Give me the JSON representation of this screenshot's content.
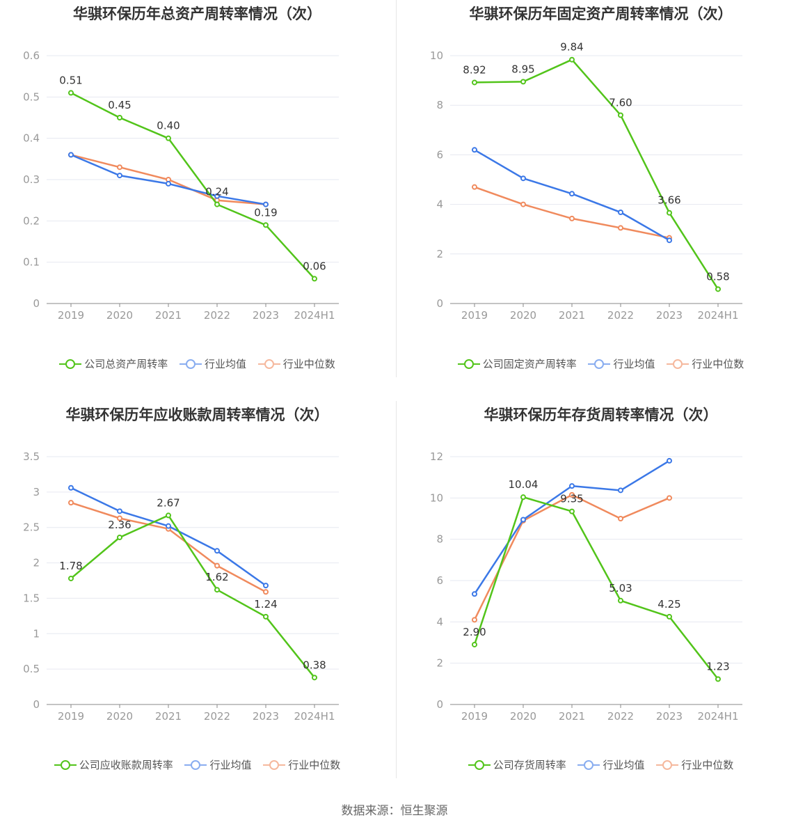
{
  "source": "数据来源：恒生聚源",
  "colors": {
    "company": "#52c41a",
    "avg": "#3b78e7",
    "median": "#f08a5d",
    "grid": "#e6e8f0",
    "axis": "#999999"
  },
  "chart_data": [
    {
      "type": "line",
      "title": "华骐环保历年总资产周转率情况（次）",
      "categories": [
        "2019",
        "2020",
        "2021",
        "2022",
        "2023",
        "2024H1"
      ],
      "ylim": [
        0,
        0.6
      ],
      "yticks": [
        "0",
        "0.1",
        "0.2",
        "0.3",
        "0.4",
        "0.5",
        "0.6"
      ],
      "grid": true,
      "legend_position": "bottom",
      "series": [
        {
          "name": "公司总资产周转率",
          "values": [
            0.51,
            0.45,
            0.4,
            0.24,
            0.19,
            0.06
          ],
          "labels": [
            "0.51",
            "0.45",
            "0.40",
            "0.24",
            "0.19",
            "0.06"
          ]
        },
        {
          "name": "行业均值",
          "values": [
            0.36,
            0.31,
            0.29,
            0.26,
            0.24,
            null
          ]
        },
        {
          "name": "行业中位数",
          "values": [
            0.36,
            0.33,
            0.3,
            0.25,
            0.24,
            null
          ]
        }
      ]
    },
    {
      "type": "line",
      "title": "华骐环保历年固定资产周转率情况（次）",
      "categories": [
        "2019",
        "2020",
        "2021",
        "2022",
        "2023",
        "2024H1"
      ],
      "ylim": [
        0,
        10
      ],
      "yticks": [
        "0",
        "2",
        "4",
        "6",
        "8",
        "10"
      ],
      "grid": true,
      "legend_position": "bottom",
      "series": [
        {
          "name": "公司固定资产周转率",
          "values": [
            8.92,
            8.95,
            9.84,
            7.6,
            3.66,
            0.58
          ],
          "labels": [
            "8.92",
            "8.95",
            "9.84",
            "7.60",
            "3.66",
            "0.58"
          ]
        },
        {
          "name": "行业均值",
          "values": [
            6.2,
            5.05,
            4.43,
            3.68,
            2.55,
            null
          ]
        },
        {
          "name": "行业中位数",
          "values": [
            4.7,
            4.0,
            3.43,
            3.05,
            2.65,
            null
          ]
        }
      ]
    },
    {
      "type": "line",
      "title": "华骐环保历年应收账款周转率情况（次）",
      "categories": [
        "2019",
        "2020",
        "2021",
        "2022",
        "2023",
        "2024H1"
      ],
      "ylim": [
        0,
        3.5
      ],
      "yticks": [
        "0",
        "0.5",
        "1",
        "1.5",
        "2",
        "2.5",
        "3",
        "3.5"
      ],
      "grid": true,
      "legend_position": "bottom",
      "series": [
        {
          "name": "公司应收账款周转率",
          "values": [
            1.78,
            2.36,
            2.67,
            1.62,
            1.24,
            0.38
          ],
          "labels": [
            "1.78",
            "2.36",
            "2.67",
            "1.62",
            "1.24",
            "0.38"
          ]
        },
        {
          "name": "行业均值",
          "values": [
            3.06,
            2.73,
            2.52,
            2.17,
            1.68,
            null
          ]
        },
        {
          "name": "行业中位数",
          "values": [
            2.85,
            2.63,
            2.48,
            1.96,
            1.59,
            null
          ]
        }
      ]
    },
    {
      "type": "line",
      "title": "华骐环保历年存货周转率情况（次）",
      "categories": [
        "2019",
        "2020",
        "2021",
        "2022",
        "2023",
        "2024H1"
      ],
      "ylim": [
        0,
        12
      ],
      "yticks": [
        "0",
        "2",
        "4",
        "6",
        "8",
        "10",
        "12"
      ],
      "grid": true,
      "legend_position": "bottom",
      "series": [
        {
          "name": "公司存货周转率",
          "values": [
            2.9,
            10.04,
            9.35,
            5.03,
            4.25,
            1.23
          ],
          "labels": [
            "2.90",
            "10.04",
            "9.35",
            "5.03",
            "4.25",
            "1.23"
          ]
        },
        {
          "name": "行业均值",
          "values": [
            5.35,
            8.95,
            10.58,
            10.37,
            11.8,
            null
          ]
        },
        {
          "name": "行业中位数",
          "values": [
            4.1,
            8.9,
            10.15,
            9.0,
            10.0,
            null
          ]
        }
      ]
    }
  ]
}
